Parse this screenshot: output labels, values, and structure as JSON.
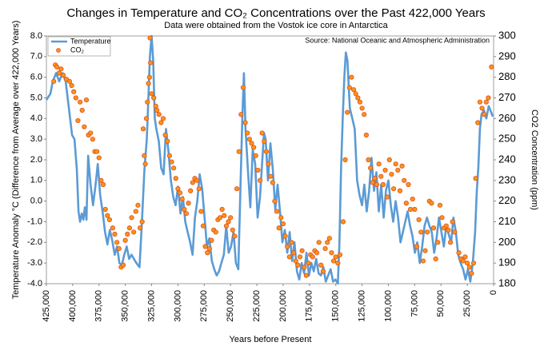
{
  "chart_data": {
    "type": "line",
    "title": "Changes in Temperature and CO₂ Concentrations over the Past 422,000 Years",
    "subtitle": "Data were obtained from the Vostok ice core in Antarctica",
    "source": "Source: National Oceanic and Atmospheric Administration",
    "xlabel": "Years before Present",
    "ylabel": "Temperature Anomaly °C (Difference from Average over 422,000 Years)",
    "y2label": "CO2 Concentration (ppm)",
    "legend": "upper left",
    "xlim": [
      425000,
      0
    ],
    "xticks": [
      {
        "value": 425000,
        "label": "425,000"
      },
      {
        "value": 400000,
        "label": "400,000"
      },
      {
        "value": 375000,
        "label": "375,000"
      },
      {
        "value": 350000,
        "label": "350,000"
      },
      {
        "value": 325000,
        "label": "325,000"
      },
      {
        "value": 300000,
        "label": "300,000"
      },
      {
        "value": 275000,
        "label": "275,000"
      },
      {
        "value": 250000,
        "label": "250,000"
      },
      {
        "value": 225000,
        "label": "225,000"
      },
      {
        "value": 200000,
        "label": "200,000"
      },
      {
        "value": 175000,
        "label": "175,000"
      },
      {
        "value": 150000,
        "label": "150,000"
      },
      {
        "value": 125000,
        "label": "125,000"
      },
      {
        "value": 100000,
        "label": "100,000"
      },
      {
        "value": 75000,
        "label": "75,000"
      },
      {
        "value": 50000,
        "label": "50,000"
      },
      {
        "value": 25000,
        "label": "25,000"
      },
      0
    ],
    "ylim": [
      -4,
      8
    ],
    "yticks": [
      {
        "value": 8,
        "label": "8.0"
      },
      {
        "value": 7,
        "label": "7.0"
      },
      {
        "value": 6,
        "label": "6.0"
      },
      {
        "value": 5,
        "label": "5.0"
      },
      {
        "value": 4,
        "label": "4.0"
      },
      {
        "value": 3,
        "label": "3.0"
      },
      {
        "value": 2,
        "label": "2.0"
      },
      {
        "value": 1,
        "label": "1.0"
      },
      {
        "value": 0,
        "label": "0.0"
      },
      {
        "value": -1,
        "label": "-1.0"
      },
      {
        "value": -2,
        "label": "-2.0"
      },
      {
        "value": -3,
        "label": "-3.0"
      },
      {
        "value": -4,
        "label": "-4.0"
      }
    ],
    "y2lim": [
      180,
      300
    ],
    "y2ticks": [
      180,
      190,
      200,
      210,
      220,
      230,
      240,
      250,
      260,
      270,
      280,
      290,
      300
    ],
    "series": [
      {
        "name": "Temperature",
        "type": "line",
        "color": "#5b9bd5",
        "x": [
          425000,
          421200,
          418900,
          415800,
          412800,
          409700,
          406700,
          403600,
          400600,
          398300,
          396000,
          394500,
          393000,
          391400,
          389900,
          388400,
          386900,
          385300,
          383000,
          380700,
          378500,
          376200,
          373900,
          371600,
          369300,
          367000,
          364700,
          362400,
          360100,
          357900,
          355600,
          353300,
          351000,
          348700,
          346400,
          344100,
          341800,
          339500,
          336500,
          334200,
          331900,
          329600,
          328100,
          326600,
          325000,
          323500,
          322000,
          320500,
          318200,
          315900,
          313600,
          311300,
          309000,
          306700,
          304400,
          302200,
          299900,
          297600,
          295300,
          293000,
          290700,
          288400,
          286100,
          283800,
          281600,
          279300,
          277000,
          274700,
          272400,
          270100,
          267800,
          265500,
          263200,
          260900,
          258700,
          256400,
          254100,
          251800,
          249500,
          247200,
          244900,
          242600,
          240400,
          238800,
          237300,
          235800,
          233500,
          231200,
          228900,
          226600,
          224300,
          222000,
          219800,
          218200,
          216700,
          214400,
          212100,
          209800,
          207500,
          205300,
          203000,
          200700,
          198400,
          196100,
          193800,
          191500,
          189200,
          186900,
          184700,
          182400,
          180100,
          177800,
          175500,
          173200,
          170900,
          168600,
          166300,
          164100,
          161800,
          159500,
          157200,
          154900,
          152600,
          150300,
          148000,
          146500,
          145000,
          143400,
          141900,
          140400,
          138900,
          136600,
          134300,
          132000,
          129700,
          127400,
          125100,
          122900,
          120600,
          118300,
          116000,
          113700,
          111400,
          109100,
          106800,
          104500,
          102300,
          100000,
          97700,
          95400,
          93100,
          90800,
          88500,
          86200,
          83900,
          81700,
          79400,
          77100,
          74800,
          72500,
          70200,
          67900,
          65600,
          63300,
          61000,
          58800,
          56500,
          54200,
          51900,
          49600,
          47300,
          45000,
          42700,
          40400,
          38200,
          35900,
          33600,
          31300,
          29000,
          26700,
          24400,
          22100,
          19800,
          17600,
          16000,
          14500,
          13000,
          11500,
          9200,
          6900,
          4600,
          2300,
          800
        ],
        "values": [
          4.9,
          5.2,
          5.8,
          6.2,
          5.8,
          6.2,
          5.8,
          4.5,
          3.2,
          3.0,
          1.5,
          -0.5,
          -1.0,
          -0.6,
          -0.9,
          -0.3,
          -0.9,
          2.2,
          0.8,
          -0.2,
          0.7,
          1.8,
          0.3,
          -0.5,
          -1.5,
          -2.1,
          -1.4,
          -1.9,
          -2.6,
          -2.2,
          -3.0,
          -3.1,
          -2.6,
          -2.2,
          -2.8,
          -2.6,
          -2.8,
          -3.0,
          -3.2,
          -1.0,
          1.5,
          3.0,
          5.0,
          7.0,
          8.0,
          6.8,
          4.0,
          3.5,
          2.9,
          1.6,
          1.3,
          3.5,
          2.4,
          1.0,
          0.2,
          -0.2,
          0.7,
          -0.6,
          0.2,
          -1.0,
          -1.5,
          -2.0,
          -2.6,
          -0.8,
          0.0,
          1.3,
          0.6,
          -0.8,
          -2.2,
          -1.8,
          -2.9,
          -3.3,
          -3.6,
          -3.4,
          -3.0,
          -2.6,
          -1.2,
          -2.5,
          -2.2,
          -1.5,
          -3.0,
          -3.3,
          1.0,
          4.0,
          6.2,
          3.5,
          1.5,
          -0.3,
          2.5,
          1.8,
          -0.8,
          0.2,
          2.0,
          3.3,
          3.0,
          1.0,
          2.8,
          1.5,
          -0.4,
          0.8,
          -0.5,
          -2.0,
          -1.4,
          -2.5,
          -1.5,
          -2.9,
          -2.0,
          -3.4,
          -3.8,
          -3.0,
          -3.5,
          -2.5,
          -3.6,
          -3.0,
          -3.4,
          -2.8,
          -3.5,
          -3.6,
          -3.2,
          -3.9,
          -3.6,
          -3.3,
          -3.9,
          -3.8,
          -4.0,
          -2.0,
          1.5,
          4.0,
          6.0,
          7.2,
          6.8,
          4.5,
          4.0,
          3.5,
          1.0,
          0.3,
          -0.2,
          0.8,
          -0.5,
          0.5,
          2.1,
          0.5,
          1.4,
          -0.5,
          0.8,
          -0.8,
          0.5,
          1.0,
          -0.2,
          -1.0,
          0.0,
          -0.8,
          -2.0,
          -1.5,
          -1.0,
          -0.5,
          -1.2,
          -1.7,
          -2.5,
          -2.0,
          -3.0,
          -2.2,
          -1.2,
          -0.8,
          -1.2,
          -1.5,
          -2.5,
          -1.8,
          -0.8,
          -1.5,
          -2.2,
          -1.2,
          -1.6,
          -2.0,
          -0.8,
          -1.5,
          -2.6,
          -3.0,
          -3.3,
          -3.8,
          -3.3,
          -3.9,
          -3.0,
          -1.5,
          0.5,
          1.6,
          3.5,
          4.2,
          4.4,
          4.0,
          4.6,
          4.3,
          4.1
        ]
      },
      {
        "name": "CO₂",
        "type": "scatter",
        "color": "#f7941d",
        "axis": "y2",
        "x": [
          418000,
          416500,
          415000,
          413000,
          411000,
          409000,
          406000,
          403000,
          401000,
          399000,
          397000,
          395000,
          393000,
          391000,
          389000,
          387000,
          385000,
          383000,
          381000,
          379000,
          377000,
          375000,
          373000,
          371000,
          369000,
          367000,
          365000,
          362000,
          360000,
          358000,
          356000,
          354000,
          352000,
          350000,
          348000,
          346000,
          344000,
          342000,
          340000,
          338000,
          336000,
          334000,
          333000,
          332000,
          331000,
          330000,
          329000,
          328000,
          327000,
          326500,
          326000,
          325000,
          323000,
          321000,
          320000,
          318000,
          316000,
          314000,
          312000,
          310000,
          308000,
          306000,
          304000,
          302000,
          300000,
          298000,
          296000,
          294000,
          292000,
          290000,
          288000,
          286000,
          284000,
          282000,
          280000,
          278000,
          276000,
          274000,
          272000,
          270000,
          268000,
          266000,
          264000,
          262000,
          260000,
          258000,
          256000,
          254000,
          252000,
          250000,
          248000,
          246000,
          244000,
          242000,
          240000,
          238000,
          236000,
          234000,
          232000,
          230000,
          228000,
          226000,
          224000,
          222000,
          220000,
          218000,
          216000,
          214000,
          212000,
          210000,
          208000,
          206000,
          204000,
          202000,
          200000,
          198000,
          196000,
          194000,
          192000,
          190000,
          188000,
          186000,
          184000,
          182000,
          180000,
          178000,
          176000,
          174000,
          172000,
          170000,
          168000,
          166000,
          164000,
          162000,
          160000,
          158000,
          156000,
          154000,
          152000,
          150000,
          148000,
          146000,
          143000,
          141000,
          139000,
          137000,
          135000,
          133000,
          131000,
          129000,
          127000,
          125000,
          123000,
          121000,
          119000,
          117000,
          115000,
          113000,
          111000,
          109000,
          107000,
          105000,
          103000,
          101000,
          99000,
          97000,
          95000,
          93000,
          91000,
          89000,
          87000,
          85000,
          83000,
          81000,
          79000,
          77000,
          75000,
          73000,
          71000,
          69000,
          67000,
          65000,
          63000,
          61000,
          59000,
          57000,
          55000,
          53000,
          51000,
          49000,
          47000,
          45000,
          43000,
          41000,
          39000,
          37000,
          33000,
          31000,
          29000,
          27000,
          25000,
          23000,
          21000,
          19000,
          17000,
          15000,
          13000,
          11000,
          9000,
          7000,
          5000,
          2000
        ],
        "values": [
          278,
          286,
          285,
          282,
          284,
          281,
          279,
          278,
          276,
          273,
          270,
          259,
          268,
          264,
          256,
          269,
          252,
          253,
          250,
          244,
          244,
          241,
          230,
          228,
          216,
          213,
          211,
          207,
          204,
          200,
          197,
          188,
          189,
          201,
          204,
          207,
          212,
          205,
          215,
          218,
          207,
          210,
          255,
          242,
          238,
          260,
          268,
          277,
          280,
          299,
          287,
          272,
          270,
          266,
          264,
          262,
          258,
          260,
          252,
          249,
          242,
          239,
          236,
          231,
          226,
          224,
          221,
          216,
          214,
          219,
          225,
          229,
          231,
          230,
          226,
          215,
          208,
          198,
          195,
          197,
          201,
          206,
          205,
          211,
          212,
          216,
          213,
          208,
          210,
          212,
          206,
          203,
          226,
          244,
          262,
          275,
          258,
          253,
          250,
          248,
          246,
          242,
          235,
          230,
          253,
          249,
          244,
          238,
          232,
          229,
          220,
          215,
          207,
          212,
          209,
          203,
          198,
          193,
          200,
          195,
          191,
          189,
          193,
          196,
          188,
          184,
          190,
          194,
          193,
          196,
          195,
          200,
          189,
          186,
          197,
          200,
          202,
          195,
          191,
          193,
          190,
          194,
          210,
          240,
          263,
          275,
          280,
          274,
          272,
          270,
          268,
          265,
          262,
          252,
          240,
          236,
          229,
          231,
          228,
          238,
          232,
          228,
          235,
          222,
          240,
          233,
          226,
          238,
          235,
          225,
          237,
          230,
          219,
          228,
          216,
          221,
          216,
          198,
          211,
          205,
          191,
          196,
          205,
          220,
          219,
          207,
          192,
          200,
          218,
          212,
          207,
          208,
          206,
          200,
          210,
          205,
          195,
          192,
          191,
          193,
          190,
          188,
          185,
          190,
          231,
          258,
          268,
          265,
          262,
          268,
          270,
          285
        ]
      }
    ]
  }
}
